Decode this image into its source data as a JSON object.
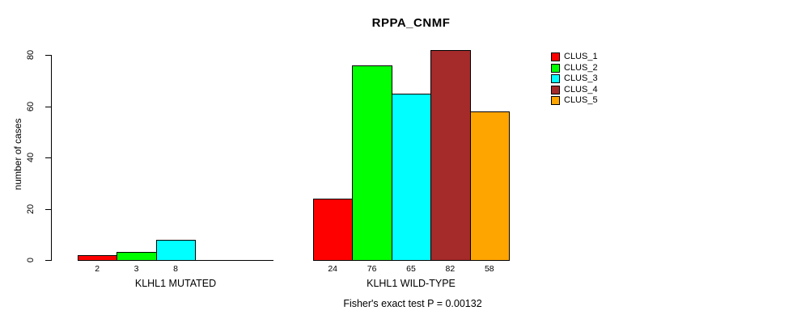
{
  "chart_data": {
    "type": "bar",
    "title": "RPPA_CNMF",
    "xlabel": "",
    "ylabel": "number of cases",
    "ylim": [
      0,
      80
    ],
    "yticks": [
      0,
      20,
      40,
      60,
      80
    ],
    "grid": false,
    "legend_position": "right",
    "categories": [
      "KLHL1 MUTATED",
      "KLHL1 WILD-TYPE"
    ],
    "series": [
      {
        "name": "CLUS_1",
        "color": "#ff0000",
        "values": [
          2,
          24
        ]
      },
      {
        "name": "CLUS_2",
        "color": "#00ff00",
        "values": [
          3,
          76
        ]
      },
      {
        "name": "CLUS_3",
        "color": "#00ffff",
        "values": [
          8,
          65
        ]
      },
      {
        "name": "CLUS_4",
        "color": "#a52a2a",
        "values": [
          0,
          82
        ]
      },
      {
        "name": "CLUS_5",
        "color": "#ffa500",
        "values": [
          0,
          58
        ]
      }
    ],
    "bar_value_labels": {
      "KLHL1 MUTATED": [
        "2",
        "3",
        "8",
        "",
        ""
      ],
      "KLHL1 WILD-TYPE": [
        "24",
        "76",
        "65",
        "82",
        "58"
      ]
    },
    "subtitle": "Fisher's exact test P = 0.00132",
    "colors": {
      "axis": "#000000",
      "background": "#ffffff",
      "text": "#000000"
    }
  }
}
